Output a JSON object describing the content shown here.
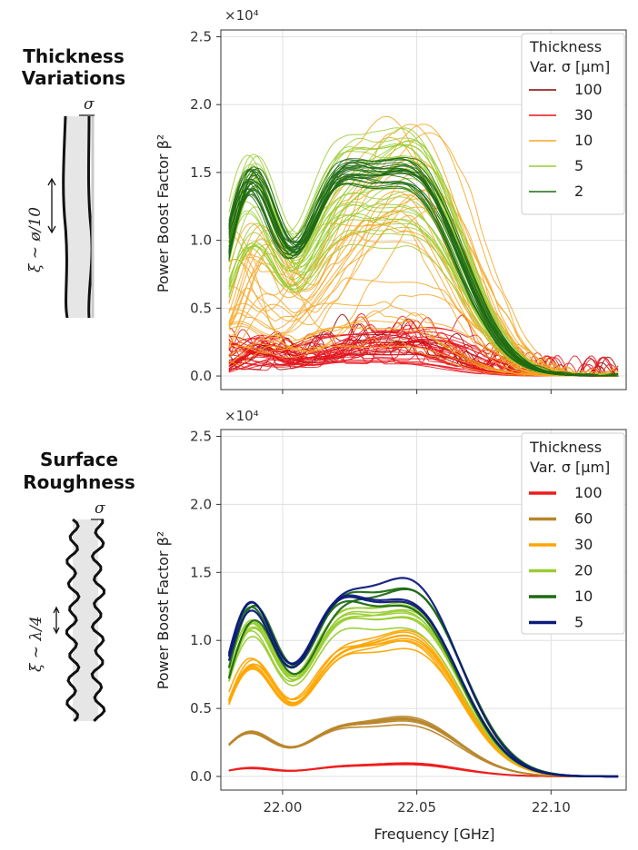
{
  "panels": [
    {
      "side_title_lines": [
        "Thickness",
        "Variations"
      ],
      "sigma_label": "σ",
      "xi_label": "ξ ∼ ø/10"
    },
    {
      "side_title_lines": [
        "Surface",
        "Roughness"
      ],
      "sigma_label": "σ",
      "xi_label": "ξ ∼ λ/4"
    }
  ],
  "chart_data": [
    {
      "type": "line",
      "ylabel": "Power Boost Factor β²",
      "scale_label": "×10⁴",
      "ylim": [
        -0.1,
        2.55
      ],
      "yticks": [
        "0.0",
        "0.5",
        "1.0",
        "1.5",
        "2.0",
        "2.5"
      ],
      "ytick_values": [
        0.0,
        0.5,
        1.0,
        1.5,
        2.0,
        2.5
      ],
      "xlim": [
        21.977,
        22.128
      ],
      "xticks": [
        22.0,
        22.05,
        22.1
      ],
      "grid": true,
      "legend_placement": "top-right",
      "legend_title_lines": [
        "Thickness",
        "Var. σ [μm]"
      ],
      "series": [
        {
          "name": "100",
          "color": "#8b0000",
          "line_count": 8
        },
        {
          "name": "30",
          "color": "#e8141c",
          "line_count": 30
        },
        {
          "name": "10",
          "color": "#f5a623",
          "line_count": 30
        },
        {
          "name": "5",
          "color": "#9acd32",
          "line_count": 28
        },
        {
          "name": "2",
          "color": "#1e6b14",
          "line_count": 26
        }
      ]
    },
    {
      "type": "line",
      "ylabel": "Power Boost Factor β²",
      "scale_label": "×10⁴",
      "xlabel": "Frequency [GHz]",
      "ylim": [
        -0.1,
        2.55
      ],
      "yticks": [
        "0.0",
        "0.5",
        "1.0",
        "1.5",
        "2.0",
        "2.5"
      ],
      "ytick_values": [
        0.0,
        0.5,
        1.0,
        1.5,
        2.0,
        2.5
      ],
      "xlim": [
        21.977,
        22.128
      ],
      "xticks": [
        22.0,
        22.05,
        22.1
      ],
      "xtick_labels": [
        "22.00",
        "22.05",
        "22.10"
      ],
      "grid": true,
      "legend_placement": "top-right",
      "legend_title_lines": [
        "Thickness",
        "Var. σ [μm]"
      ],
      "series": [
        {
          "name": "100",
          "color": "#ee1c1c",
          "peak1": 0.06,
          "peak2": 0.09,
          "line_count": 4
        },
        {
          "name": "60",
          "color": "#b8862a",
          "peak1": 0.3,
          "peak2": 0.4,
          "line_count": 7
        },
        {
          "name": "30",
          "color": "#ffa500",
          "peak1": 0.8,
          "peak2": 0.98,
          "line_count": 8
        },
        {
          "name": "20",
          "color": "#9acd32",
          "peak1": 1.05,
          "peak2": 1.15,
          "line_count": 8
        },
        {
          "name": "10",
          "color": "#1e6b14",
          "peak1": 1.18,
          "peak2": 1.33,
          "line_count": 3
        },
        {
          "name": "5",
          "color": "#0d1a7a",
          "peak1": 1.25,
          "peak2": 1.36,
          "line_count": 3
        }
      ]
    }
  ]
}
